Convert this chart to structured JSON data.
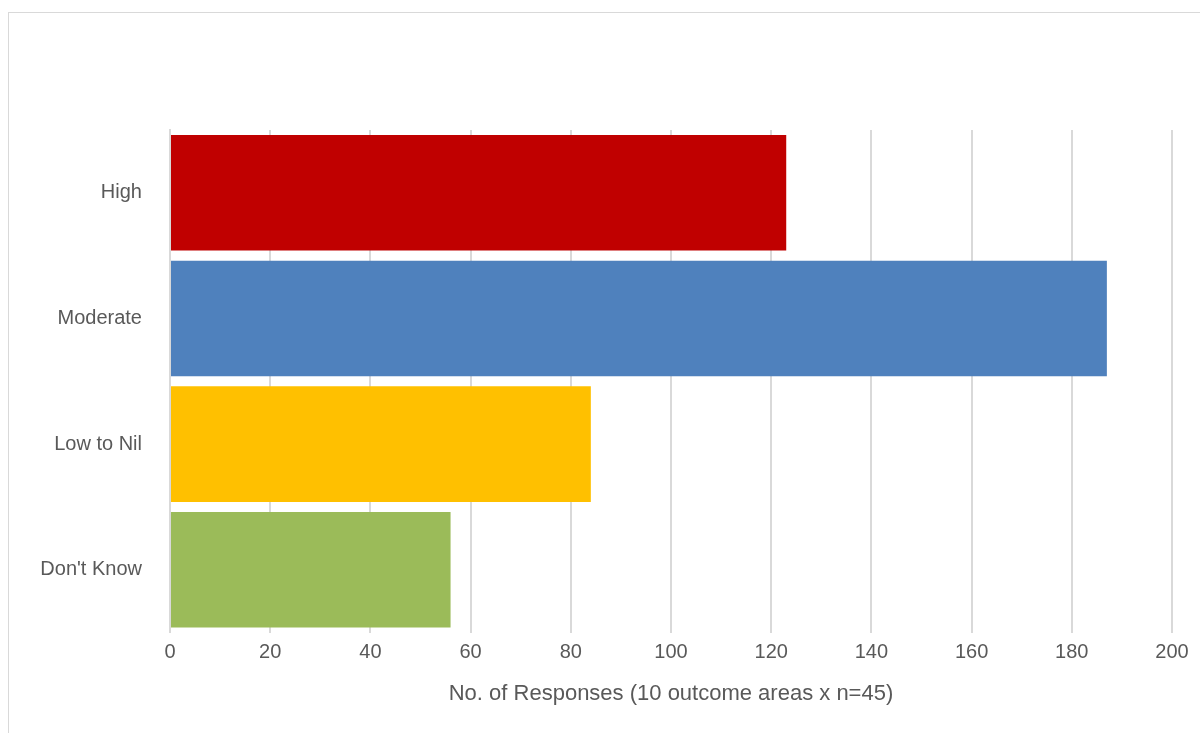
{
  "chart_data": {
    "type": "bar",
    "orientation": "horizontal",
    "categories": [
      "High",
      "Moderate",
      "Low to Nil",
      "Don't Know"
    ],
    "values": [
      123,
      187,
      84,
      56
    ],
    "colors": [
      "#c00000",
      "#4f81bd",
      "#ffc000",
      "#9bbb59"
    ],
    "xlabel": "No. of Responses (10 outcome areas x n=45)",
    "xlim": [
      0,
      200
    ],
    "xticks": [
      0,
      20,
      40,
      60,
      80,
      100,
      120,
      140,
      160,
      180,
      200
    ],
    "grid": "x",
    "legend": false
  }
}
